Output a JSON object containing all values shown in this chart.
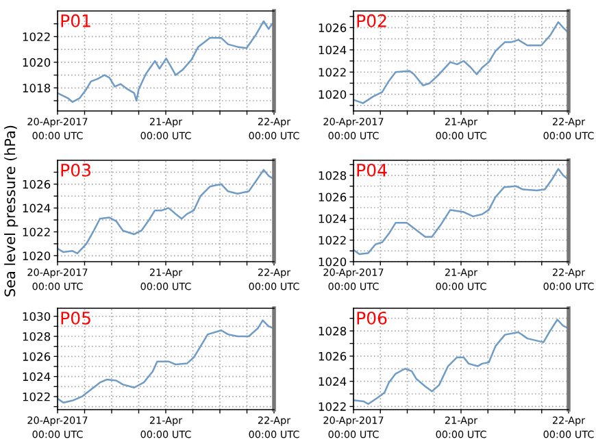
{
  "chart_data": [
    {
      "type": "line",
      "title": "P01",
      "x": [
        "2017-04-20T00:00",
        "2017-04-20T02:18",
        "2017-04-20T03:18",
        "2017-04-20T04:54",
        "2017-04-20T06:24",
        "2017-04-20T07:24",
        "2017-04-20T08:54",
        "2017-04-20T10:24",
        "2017-04-20T11:30",
        "2017-04-20T12:42",
        "2017-04-20T14:00",
        "2017-04-20T15:30",
        "2017-04-20T17:00",
        "2017-04-20T17:30",
        "2017-04-20T18:00",
        "2017-04-20T19:36",
        "2017-04-20T21:36",
        "2017-04-20T22:36",
        "2017-04-21T00:06",
        "2017-04-21T02:12",
        "2017-04-21T03:42",
        "2017-04-21T05:42",
        "2017-04-21T07:12",
        "2017-04-21T09:48",
        "2017-04-21T12:18",
        "2017-04-21T13:48",
        "2017-04-21T15:54",
        "2017-04-21T17:54",
        "2017-04-21T19:54",
        "2017-04-21T21:42",
        "2017-04-21T22:48",
        "2017-04-21T23:36",
        "2017-04-22T00:00"
      ],
      "series": [
        {
          "color": "#6f9bc7",
          "values": [
            1017.6,
            1017.2,
            1016.9,
            1017.2,
            1017.9,
            1018.5,
            1018.7,
            1019.0,
            1018.8,
            1018.1,
            1018.3,
            1017.9,
            1017.6,
            1017.0,
            1017.9,
            1019.1,
            1020.1,
            1019.5,
            1020.3,
            1019.0,
            1019.4,
            1020.2,
            1021.2,
            1021.9,
            1021.9,
            1021.4,
            1021.2,
            1021.1,
            1022.1,
            1023.2,
            1022.6,
            1023.0,
            1022.9
          ]
        }
      ],
      "xlim": [
        "2017-04-20T00:00",
        "2017-04-22T00:00"
      ],
      "xticks": [
        {
          "value": "2017-04-20T00:00",
          "label": "20-Apr-2017\n00:00 UTC"
        },
        {
          "value": "2017-04-20T06:00",
          "label": null
        },
        {
          "value": "2017-04-20T12:00",
          "label": null
        },
        {
          "value": "2017-04-20T18:00",
          "label": null
        },
        {
          "value": "2017-04-21T00:00",
          "label": "21-Apr\n00:00 UTC"
        },
        {
          "value": "2017-04-21T06:00",
          "label": null
        },
        {
          "value": "2017-04-21T12:00",
          "label": null
        },
        {
          "value": "2017-04-21T18:00",
          "label": null
        },
        {
          "value": "2017-04-22T00:00",
          "label": "22-Apr\n00:00 UTC"
        }
      ],
      "ylim": [
        1016.2,
        1024
      ],
      "yticks": [
        {
          "value": 1017,
          "label": null
        },
        1018,
        {
          "value": 1019,
          "label": null
        },
        1020,
        {
          "value": 1021,
          "label": null
        },
        1022,
        {
          "value": 1023,
          "label": null
        }
      ],
      "grid": true,
      "marker": "none",
      "line_style": "solid"
    },
    {
      "type": "line",
      "title": "P02",
      "x": [
        "2017-04-20T00:00",
        "2017-04-20T02:06",
        "2017-04-20T04:24",
        "2017-04-20T06:24",
        "2017-04-20T07:54",
        "2017-04-20T09:24",
        "2017-04-20T12:30",
        "2017-04-20T13:30",
        "2017-04-20T15:30",
        "2017-04-20T17:00",
        "2017-04-20T19:06",
        "2017-04-20T21:36",
        "2017-04-20T23:06",
        "2017-04-21T00:36",
        "2017-04-21T02:12",
        "2017-04-21T03:30",
        "2017-04-21T04:42",
        "2017-04-21T06:12",
        "2017-04-21T07:42",
        "2017-04-21T09:48",
        "2017-04-21T11:18",
        "2017-04-21T12:48",
        "2017-04-21T14:48",
        "2017-04-21T17:54",
        "2017-04-21T19:54",
        "2017-04-21T21:42",
        "2017-04-21T22:48",
        "2017-04-21T23:48"
      ],
      "series": [
        {
          "color": "#6f9bc7",
          "values": [
            1019.5,
            1019.2,
            1019.8,
            1020.2,
            1021.2,
            1022.0,
            1022.1,
            1021.8,
            1020.8,
            1021.0,
            1021.8,
            1022.9,
            1022.7,
            1023.0,
            1022.4,
            1021.8,
            1022.4,
            1022.9,
            1023.9,
            1024.7,
            1024.7,
            1024.9,
            1024.4,
            1024.4,
            1025.3,
            1026.5,
            1026.0,
            1025.6
          ]
        }
      ],
      "xlim": [
        "2017-04-20T00:00",
        "2017-04-22T00:00"
      ],
      "xticks": [
        {
          "value": "2017-04-20T00:00",
          "label": "20-Apr-2017\n00:00 UTC"
        },
        {
          "value": "2017-04-20T06:00",
          "label": null
        },
        {
          "value": "2017-04-20T12:00",
          "label": null
        },
        {
          "value": "2017-04-20T18:00",
          "label": null
        },
        {
          "value": "2017-04-21T00:00",
          "label": "21-Apr\n00:00 UTC"
        },
        {
          "value": "2017-04-21T06:00",
          "label": null
        },
        {
          "value": "2017-04-21T12:00",
          "label": null
        },
        {
          "value": "2017-04-21T18:00",
          "label": null
        },
        {
          "value": "2017-04-22T00:00",
          "label": "22-Apr\n00:00 UTC"
        }
      ],
      "ylim": [
        1018.5,
        1027.5
      ],
      "yticks": [
        {
          "value": 1019,
          "label": null
        },
        1020,
        {
          "value": 1021,
          "label": null
        },
        1022,
        {
          "value": 1023,
          "label": null
        },
        1024,
        {
          "value": 1025,
          "label": null
        },
        1026,
        {
          "value": 1027,
          "label": null
        }
      ],
      "grid": true,
      "marker": "none",
      "line_style": "solid"
    },
    {
      "type": "line",
      "title": "P03",
      "ylabel": "Sea level pressure (hPa)",
      "x": [
        "2017-04-20T00:00",
        "2017-04-20T01:18",
        "2017-04-20T03:18",
        "2017-04-20T04:24",
        "2017-04-20T06:24",
        "2017-04-20T07:54",
        "2017-04-20T09:24",
        "2017-04-20T11:30",
        "2017-04-20T13:00",
        "2017-04-20T14:30",
        "2017-04-20T17:00",
        "2017-04-20T18:36",
        "2017-04-20T20:06",
        "2017-04-20T21:36",
        "2017-04-20T23:06",
        "2017-04-21T00:36",
        "2017-04-21T02:12",
        "2017-04-21T03:30",
        "2017-04-21T04:42",
        "2017-04-21T06:12",
        "2017-04-21T07:42",
        "2017-04-21T09:48",
        "2017-04-21T12:18",
        "2017-04-21T13:48",
        "2017-04-21T15:54",
        "2017-04-21T18:24",
        "2017-04-21T19:54",
        "2017-04-21T21:42",
        "2017-04-21T22:48",
        "2017-04-22T00:00"
      ],
      "series": [
        {
          "color": "#6f9bc7",
          "values": [
            1020.6,
            1020.3,
            1020.4,
            1020.2,
            1021.0,
            1022.0,
            1023.1,
            1023.2,
            1022.9,
            1022.1,
            1021.8,
            1022.1,
            1022.9,
            1023.8,
            1023.8,
            1024.0,
            1023.5,
            1023.1,
            1023.5,
            1023.8,
            1025.0,
            1025.8,
            1026.0,
            1025.4,
            1025.2,
            1025.4,
            1026.2,
            1027.2,
            1026.7,
            1026.4
          ]
        }
      ],
      "xlim": [
        "2017-04-20T00:00",
        "2017-04-22T00:00"
      ],
      "xticks": [
        {
          "value": "2017-04-20T00:00",
          "label": "20-Apr-2017\n00:00 UTC"
        },
        {
          "value": "2017-04-20T06:00",
          "label": null
        },
        {
          "value": "2017-04-20T12:00",
          "label": null
        },
        {
          "value": "2017-04-20T18:00",
          "label": null
        },
        {
          "value": "2017-04-21T00:00",
          "label": "21-Apr\n00:00 UTC"
        },
        {
          "value": "2017-04-21T06:00",
          "label": null
        },
        {
          "value": "2017-04-21T12:00",
          "label": null
        },
        {
          "value": "2017-04-21T18:00",
          "label": null
        },
        {
          "value": "2017-04-22T00:00",
          "label": "22-Apr\n00:00 UTC"
        }
      ],
      "ylim": [
        1019.5,
        1028
      ],
      "yticks": [
        1020,
        {
          "value": 1021,
          "label": null
        },
        1022,
        {
          "value": 1023,
          "label": null
        },
        1024,
        {
          "value": 1025,
          "label": null
        },
        1026,
        {
          "value": 1027,
          "label": null
        }
      ],
      "grid": true,
      "marker": "none",
      "line_style": "solid"
    },
    {
      "type": "line",
      "title": "P04",
      "x": [
        "2017-04-20T00:00",
        "2017-04-20T01:18",
        "2017-04-20T03:18",
        "2017-04-20T04:54",
        "2017-04-20T06:24",
        "2017-04-20T07:54",
        "2017-04-20T09:24",
        "2017-04-20T11:54",
        "2017-04-20T13:30",
        "2017-04-20T16:00",
        "2017-04-20T17:30",
        "2017-04-20T19:36",
        "2017-04-20T21:36",
        "2017-04-20T23:06",
        "2017-04-21T00:36",
        "2017-04-21T02:42",
        "2017-04-21T04:42",
        "2017-04-21T06:12",
        "2017-04-21T07:42",
        "2017-04-21T09:36",
        "2017-04-21T12:18",
        "2017-04-21T13:48",
        "2017-04-21T16:54",
        "2017-04-21T18:42",
        "2017-04-21T20:24",
        "2017-04-21T21:42",
        "2017-04-21T22:48",
        "2017-04-22T00:00"
      ],
      "series": [
        {
          "color": "#6f9bc7",
          "values": [
            1021.1,
            1020.7,
            1020.8,
            1021.6,
            1021.8,
            1022.6,
            1023.6,
            1023.6,
            1023.1,
            1022.3,
            1022.3,
            1023.5,
            1024.8,
            1024.7,
            1024.6,
            1024.2,
            1024.4,
            1024.8,
            1026.0,
            1026.9,
            1027.0,
            1026.7,
            1026.6,
            1026.7,
            1027.7,
            1028.6,
            1028.0,
            1027.6
          ]
        }
      ],
      "xlim": [
        "2017-04-20T00:00",
        "2017-04-22T00:00"
      ],
      "xticks": [
        {
          "value": "2017-04-20T00:00",
          "label": "20-Apr-2017\n00:00 UTC"
        },
        {
          "value": "2017-04-20T06:00",
          "label": null
        },
        {
          "value": "2017-04-20T12:00",
          "label": null
        },
        {
          "value": "2017-04-20T18:00",
          "label": null
        },
        {
          "value": "2017-04-21T00:00",
          "label": "21-Apr\n00:00 UTC"
        },
        {
          "value": "2017-04-21T06:00",
          "label": null
        },
        {
          "value": "2017-04-21T12:00",
          "label": null
        },
        {
          "value": "2017-04-21T18:00",
          "label": null
        },
        {
          "value": "2017-04-22T00:00",
          "label": "22-Apr\n00:00 UTC"
        }
      ],
      "ylim": [
        1020,
        1029.4
      ],
      "yticks": [
        1020,
        {
          "value": 1021,
          "label": null
        },
        1022,
        {
          "value": 1023,
          "label": null
        },
        1024,
        {
          "value": 1025,
          "label": null
        },
        1026,
        {
          "value": 1027,
          "label": null
        },
        1028,
        {
          "value": 1029,
          "label": null
        }
      ],
      "grid": true,
      "marker": "none",
      "line_style": "solid"
    },
    {
      "type": "line",
      "title": "P05",
      "x": [
        "2017-04-20T00:00",
        "2017-04-20T01:18",
        "2017-04-20T03:18",
        "2017-04-20T05:24",
        "2017-04-20T07:24",
        "2017-04-20T09:24",
        "2017-04-20T10:54",
        "2017-04-20T13:00",
        "2017-04-20T14:30",
        "2017-04-20T17:00",
        "2017-04-20T19:06",
        "2017-04-20T21:06",
        "2017-04-20T22:06",
        "2017-04-21T00:36",
        "2017-04-21T02:12",
        "2017-04-21T04:42",
        "2017-04-21T06:12",
        "2017-04-21T07:42",
        "2017-04-21T09:18",
        "2017-04-21T12:18",
        "2017-04-21T13:48",
        "2017-04-21T15:54",
        "2017-04-21T18:24",
        "2017-04-21T20:24",
        "2017-04-21T21:30",
        "2017-04-21T22:48",
        "2017-04-22T00:00"
      ],
      "series": [
        {
          "color": "#6f9bc7",
          "values": [
            1021.8,
            1021.4,
            1021.6,
            1022.0,
            1022.7,
            1023.4,
            1023.7,
            1023.6,
            1023.2,
            1022.9,
            1023.4,
            1024.5,
            1025.5,
            1025.5,
            1025.2,
            1025.3,
            1025.9,
            1027.0,
            1028.2,
            1028.6,
            1028.2,
            1028.0,
            1028.0,
            1028.8,
            1029.6,
            1029.0,
            1028.8
          ]
        }
      ],
      "xlim": [
        "2017-04-20T00:00",
        "2017-04-22T00:00"
      ],
      "xticks": [
        {
          "value": "2017-04-20T00:00",
          "label": "20-Apr-2017\n00:00 UTC"
        },
        {
          "value": "2017-04-20T06:00",
          "label": null
        },
        {
          "value": "2017-04-20T12:00",
          "label": null
        },
        {
          "value": "2017-04-20T18:00",
          "label": null
        },
        {
          "value": "2017-04-21T00:00",
          "label": "21-Apr\n00:00 UTC"
        },
        {
          "value": "2017-04-21T06:00",
          "label": null
        },
        {
          "value": "2017-04-21T12:00",
          "label": null
        },
        {
          "value": "2017-04-21T18:00",
          "label": null
        },
        {
          "value": "2017-04-22T00:00",
          "label": "22-Apr\n00:00 UTC"
        }
      ],
      "ylim": [
        1020.7,
        1030.8
      ],
      "yticks": [
        {
          "value": 1021,
          "label": null
        },
        1022,
        {
          "value": 1023,
          "label": null
        },
        1024,
        {
          "value": 1025,
          "label": null
        },
        1026,
        {
          "value": 1027,
          "label": null
        },
        1028,
        {
          "value": 1029,
          "label": null
        },
        1030
      ],
      "grid": true,
      "marker": "none",
      "line_style": "solid"
    },
    {
      "type": "line",
      "title": "P06",
      "x": [
        "2017-04-20T00:00",
        "2017-04-20T02:18",
        "2017-04-20T03:18",
        "2017-04-20T05:24",
        "2017-04-20T06:54",
        "2017-04-20T07:54",
        "2017-04-20T09:24",
        "2017-04-20T11:30",
        "2017-04-20T13:00",
        "2017-04-20T14:00",
        "2017-04-20T16:00",
        "2017-04-20T17:30",
        "2017-04-20T19:06",
        "2017-04-20T21:06",
        "2017-04-20T23:06",
        "2017-04-21T00:36",
        "2017-04-21T01:42",
        "2017-04-21T03:42",
        "2017-04-21T04:42",
        "2017-04-21T06:12",
        "2017-04-21T07:42",
        "2017-04-21T09:48",
        "2017-04-21T12:48",
        "2017-04-21T14:48",
        "2017-04-21T18:24",
        "2017-04-21T19:42",
        "2017-04-21T21:30",
        "2017-04-21T22:48",
        "2017-04-22T00:00"
      ],
      "series": [
        {
          "color": "#6f9bc7",
          "values": [
            1022.5,
            1022.4,
            1022.2,
            1022.7,
            1023.1,
            1023.9,
            1024.6,
            1025.0,
            1024.8,
            1024.2,
            1023.6,
            1023.2,
            1023.7,
            1025.2,
            1025.9,
            1025.9,
            1025.4,
            1025.2,
            1025.4,
            1025.5,
            1026.8,
            1027.7,
            1027.9,
            1027.4,
            1027.1,
            1027.9,
            1028.9,
            1028.4,
            1028.2
          ]
        }
      ],
      "xlim": [
        "2017-04-20T00:00",
        "2017-04-22T00:00"
      ],
      "xticks": [
        {
          "value": "2017-04-20T00:00",
          "label": "20-Apr-2017\n00:00 UTC"
        },
        {
          "value": "2017-04-20T06:00",
          "label": null
        },
        {
          "value": "2017-04-20T12:00",
          "label": null
        },
        {
          "value": "2017-04-20T18:00",
          "label": null
        },
        {
          "value": "2017-04-21T00:00",
          "label": "21-Apr\n00:00 UTC"
        },
        {
          "value": "2017-04-21T06:00",
          "label": null
        },
        {
          "value": "2017-04-21T12:00",
          "label": null
        },
        {
          "value": "2017-04-21T18:00",
          "label": null
        },
        {
          "value": "2017-04-22T00:00",
          "label": "22-Apr\n00:00 UTC"
        }
      ],
      "ylim": [
        1021.75,
        1029.8
      ],
      "yticks": [
        1022,
        {
          "value": 1023,
          "label": null
        },
        1024,
        {
          "value": 1025,
          "label": null
        },
        1026,
        {
          "value": 1027,
          "label": null
        },
        1028,
        {
          "value": 1029,
          "label": null
        }
      ],
      "grid": true,
      "marker": "none",
      "line_style": "solid"
    }
  ]
}
